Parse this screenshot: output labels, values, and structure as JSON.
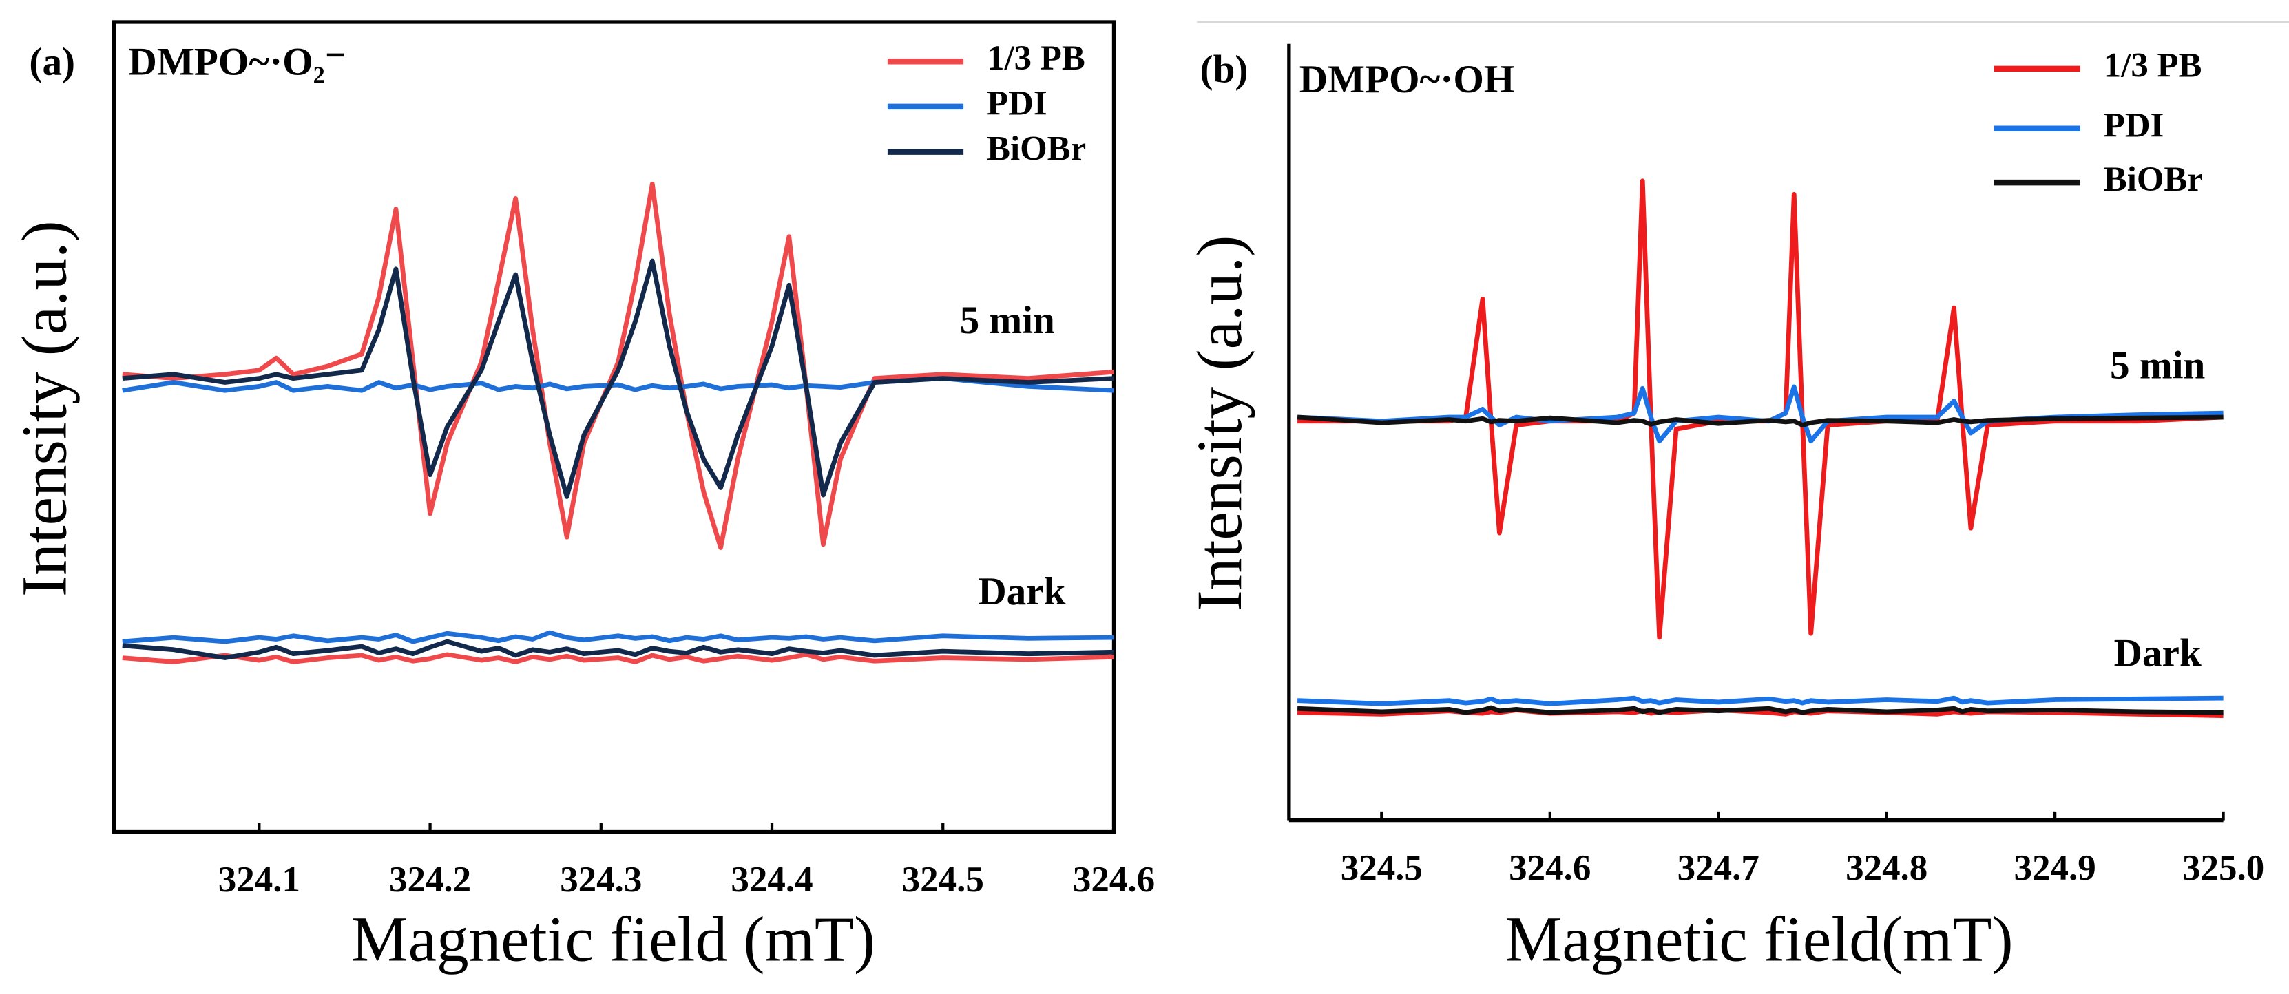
{
  "chart_data": [
    {
      "type": "line",
      "panel": "(a)",
      "title": "DMPO~·O₂⁻",
      "x_label": "Magnetic field (mT)",
      "y_label": "Intensity (a.u.)",
      "annotations": [
        "5 min",
        "Dark"
      ],
      "xlim": [
        324.015,
        324.6
      ],
      "ylim": [
        0,
        100
      ],
      "xticks": [
        324.1,
        324.2,
        324.3,
        324.4,
        324.5,
        324.6
      ],
      "x": [
        324.02,
        324.05,
        324.08,
        324.1,
        324.11,
        324.12,
        324.14,
        324.16,
        324.17,
        324.18,
        324.19,
        324.2,
        324.21,
        324.23,
        324.24,
        324.25,
        324.26,
        324.27,
        324.28,
        324.29,
        324.31,
        324.32,
        324.33,
        324.34,
        324.35,
        324.36,
        324.37,
        324.38,
        324.4,
        324.41,
        324.42,
        324.43,
        324.44,
        324.46,
        324.5,
        324.55,
        324.6
      ],
      "series": [
        {
          "name": "1/3 PB",
          "color": "#f0494b",
          "values": [
            56.5,
            56,
            56.5,
            57,
            58.5,
            56.5,
            57.5,
            59,
            66,
            76.9,
            58,
            39.3,
            48,
            58,
            68,
            78.2,
            62,
            48,
            36.4,
            48,
            58,
            68,
            80,
            64,
            52,
            42,
            35.1,
            46,
            63,
            73.5,
            55,
            35.5,
            46,
            56,
            56.5,
            56,
            56.8
          ],
          "dark_values": [
            21.5,
            21,
            21.8,
            21.2,
            21.6,
            21,
            21.5,
            21.8,
            21.2,
            21.6,
            21.1,
            21.4,
            21.9,
            21.2,
            21.5,
            21,
            21.6,
            21.3,
            21.7,
            21.2,
            21.5,
            21,
            21.8,
            21.3,
            21.6,
            21.1,
            21.4,
            21.7,
            21.2,
            21.5,
            21.9,
            21.3,
            21.6,
            21.1,
            21.5,
            21.3,
            21.6
          ]
        },
        {
          "name": "PDI",
          "color": "#1f6fd8",
          "values": [
            54.5,
            55.5,
            54.5,
            55,
            55.5,
            54.5,
            55,
            54.5,
            55.5,
            54.8,
            55.2,
            54.6,
            55,
            55.4,
            54.6,
            55,
            54.8,
            55.3,
            54.7,
            55,
            55.2,
            54.6,
            55.1,
            54.8,
            55,
            55.3,
            54.7,
            55,
            55.2,
            54.8,
            55.1,
            55,
            54.9,
            55.5,
            56,
            55,
            54.5
          ],
          "dark_values": [
            23.5,
            24,
            23.5,
            24,
            23.8,
            24.2,
            23.6,
            24,
            23.8,
            24.3,
            23.5,
            24,
            24.5,
            24,
            23.6,
            24.1,
            23.8,
            24.6,
            24,
            23.7,
            24.2,
            23.9,
            24.1,
            23.6,
            24,
            23.8,
            24.2,
            23.7,
            24,
            23.9,
            24.1,
            23.8,
            24,
            23.6,
            24.2,
            23.9,
            24
          ]
        },
        {
          "name": "BiOBr",
          "color": "#13294b",
          "values": [
            56,
            56.5,
            55.5,
            56,
            56.5,
            56,
            56.5,
            57,
            62,
            69.5,
            56,
            44.1,
            50,
            57,
            63,
            68.8,
            58,
            49,
            41.4,
            49,
            57,
            63,
            70.5,
            60,
            52,
            46,
            42.5,
            49,
            60,
            67.5,
            55,
            41.6,
            48,
            55.5,
            56,
            55.5,
            56
          ],
          "dark_values": [
            23,
            22.5,
            21.5,
            22.2,
            22.8,
            22,
            22.4,
            22.9,
            22.1,
            22.6,
            22,
            22.8,
            23.5,
            22.3,
            22.7,
            21.8,
            22.5,
            22.2,
            22.6,
            22,
            22.4,
            21.9,
            22.7,
            22.3,
            22.1,
            22.8,
            22.2,
            22.5,
            22,
            22.6,
            22.3,
            22.1,
            22.4,
            21.8,
            22.3,
            22,
            22.2
          ]
        }
      ]
    },
    {
      "type": "line",
      "panel": "(b)",
      "title": "DMPO~·OH",
      "x_label": "Magnetic field(mT)",
      "y_label": "Intensity (a.u.)",
      "annotations": [
        "5 min",
        "Dark"
      ],
      "xlim": [
        324.445,
        325.0
      ],
      "ylim": [
        0,
        100
      ],
      "xticks": [
        324.5,
        324.6,
        324.7,
        324.8,
        324.9,
        {
          "value": 325,
          "label": "325.0"
        }
      ],
      "x": [
        324.45,
        324.5,
        324.54,
        324.55,
        324.56,
        324.565,
        324.57,
        324.58,
        324.6,
        324.64,
        324.65,
        324.655,
        324.66,
        324.665,
        324.675,
        324.7,
        324.73,
        324.74,
        324.745,
        324.75,
        324.755,
        324.765,
        324.8,
        324.83,
        324.84,
        324.845,
        324.85,
        324.86,
        324.9,
        324.95,
        325
      ],
      "series": [
        {
          "name": "1/3 PB",
          "color": "#ee1c1c",
          "values": [
            50,
            50,
            50,
            50.5,
            65.3,
            50,
            36,
            49.5,
            50,
            50,
            51,
            80.1,
            50,
            22.9,
            49,
            50,
            50,
            51,
            78.4,
            50,
            23.4,
            49.5,
            50,
            50,
            64.2,
            50,
            36.6,
            49.5,
            50,
            50,
            50.5
          ],
          "dark_values": [
            13.5,
            13.3,
            13.7,
            13.5,
            13.4,
            13.6,
            13.5,
            13.8,
            13.4,
            13.6,
            13.5,
            13.7,
            13.4,
            13.6,
            13.5,
            13.8,
            13.5,
            13.3,
            13.6,
            13.5,
            13.4,
            13.7,
            13.5,
            13.3,
            13.6,
            13.5,
            13.4,
            13.6,
            13.5,
            13.3,
            13.1
          ]
        },
        {
          "name": "PDI",
          "color": "#1b73e8",
          "values": [
            50.5,
            50,
            50.5,
            50.5,
            51.5,
            50.5,
            49.5,
            50.5,
            50,
            50.5,
            51,
            54.1,
            50.5,
            47.5,
            50,
            50.5,
            50,
            51,
            54.3,
            50.5,
            47.5,
            50,
            50.5,
            50.5,
            52.5,
            50.5,
            48.5,
            50,
            50.5,
            50.8,
            51
          ],
          "dark_values": [
            15,
            14.6,
            15,
            14.7,
            14.9,
            15.2,
            14.8,
            15,
            14.6,
            15.1,
            15.3,
            14.9,
            15,
            14.7,
            15.1,
            14.8,
            15.2,
            14.9,
            15,
            14.7,
            15,
            14.8,
            15.1,
            14.9,
            15.3,
            14.8,
            15,
            14.7,
            15.1,
            15.2,
            15.3
          ]
        },
        {
          "name": "BiOBr",
          "color": "#111111",
          "values": [
            50.5,
            49.8,
            50.2,
            50,
            50.3,
            49.9,
            50.1,
            50,
            50.4,
            49.8,
            50.1,
            50,
            49.6,
            49.9,
            50.2,
            49.7,
            50.1,
            49.9,
            50,
            49.5,
            49.8,
            50.1,
            50,
            49.8,
            50.2,
            50,
            49.9,
            50.1,
            50.3,
            50.4,
            50.5
          ],
          "dark_values": [
            14,
            13.6,
            13.9,
            13.5,
            13.8,
            14.1,
            13.7,
            13.9,
            13.5,
            13.8,
            14,
            13.6,
            13.8,
            13.5,
            13.9,
            13.7,
            14,
            13.6,
            13.8,
            13.5,
            13.7,
            13.9,
            13.6,
            13.8,
            14,
            13.6,
            13.9,
            13.7,
            13.8,
            13.6,
            13.5
          ]
        }
      ]
    }
  ]
}
